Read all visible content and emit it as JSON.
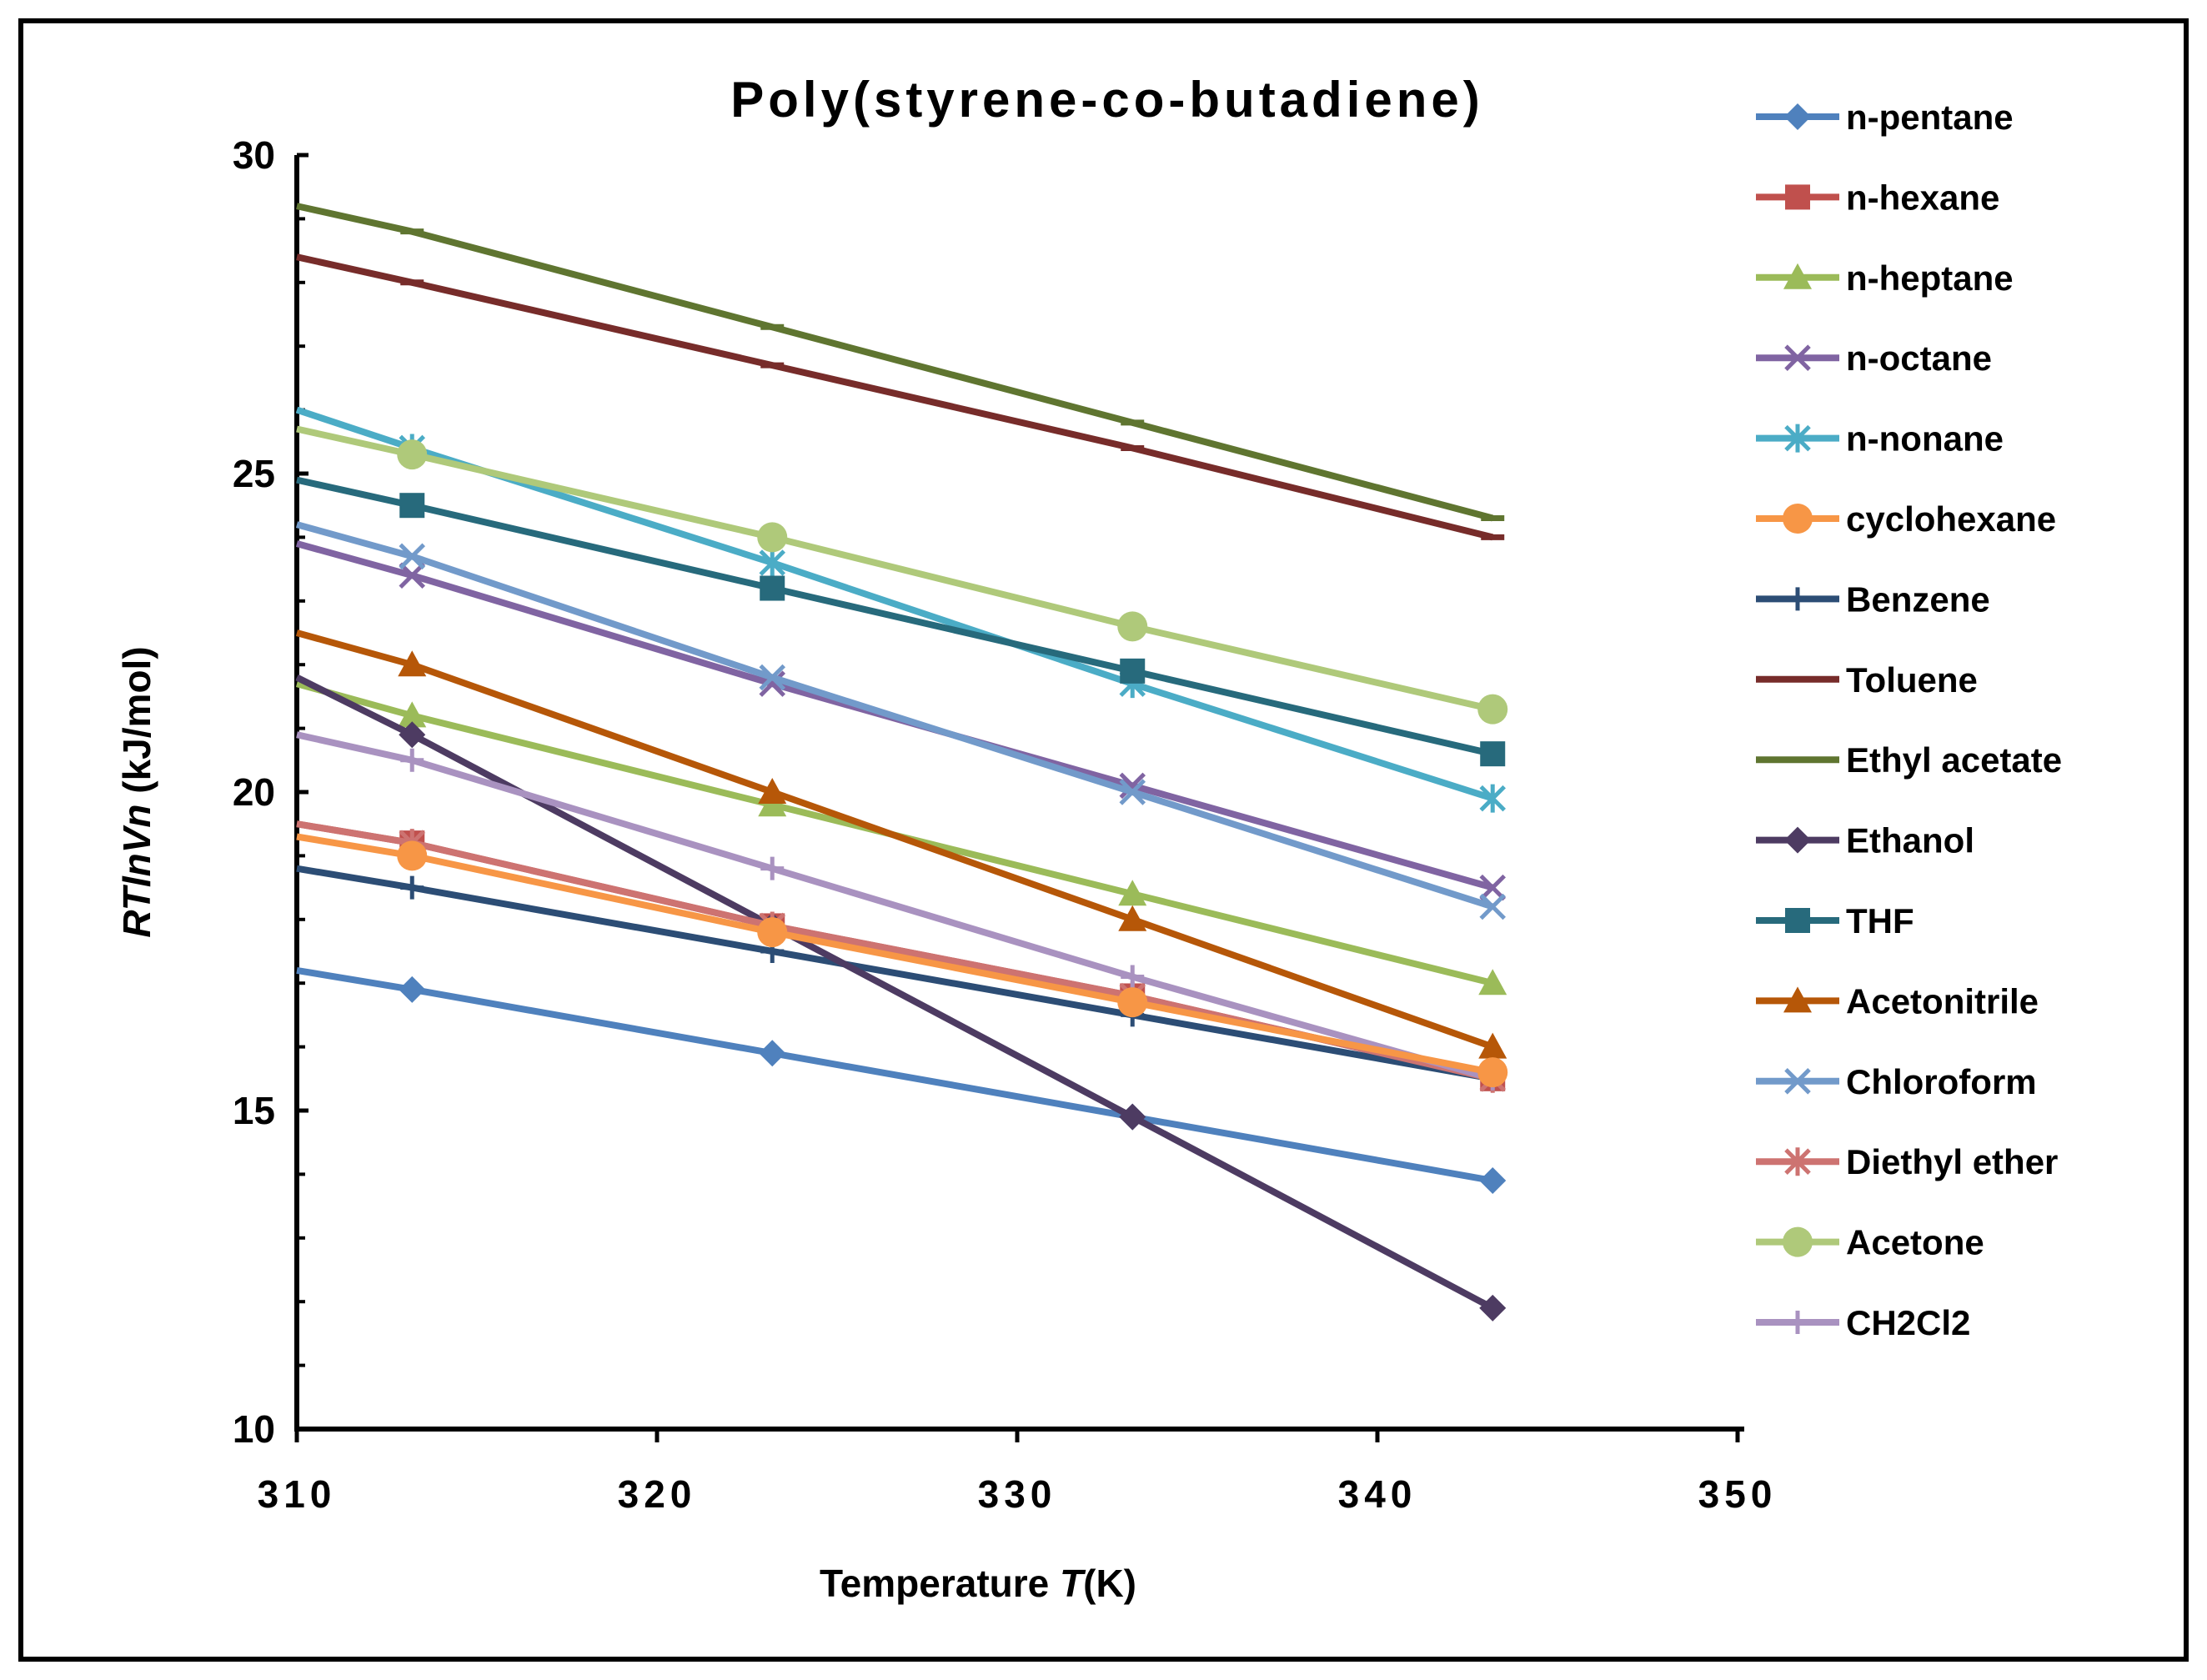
{
  "chart_data": {
    "type": "line",
    "title": "Poly(styrene-co-butadiene)",
    "xlabel_main": "Temperature ",
    "xlabel_var": "T",
    "xlabel_unit": "(K)",
    "ylabel_var": "RTlnVn",
    "ylabel_unit": " (kJ/mol)",
    "xlim": [
      310,
      350
    ],
    "ylim": [
      10,
      30
    ],
    "xticks": [
      "310",
      "320",
      "330",
      "340",
      "350"
    ],
    "yticks": [
      "10",
      "15",
      "20",
      "25",
      "30"
    ],
    "x_points": [
      313.2,
      323.2,
      333.2,
      343.2
    ],
    "legend_position": "right",
    "series": [
      {
        "name": "n-pentane",
        "color": "#4f81bd",
        "marker": "diamond",
        "start": 17.2,
        "values": [
          16.9,
          15.9,
          14.9,
          13.9
        ]
      },
      {
        "name": "n-hexane",
        "color": "#c0504d",
        "marker": "square",
        "start": 19.5,
        "values": [
          19.2,
          17.9,
          16.8,
          15.5
        ]
      },
      {
        "name": "n-heptane",
        "color": "#9bbb59",
        "marker": "triangle",
        "start": 21.7,
        "values": [
          21.2,
          19.8,
          18.4,
          17.0
        ]
      },
      {
        "name": "n-octane",
        "color": "#8064a2",
        "marker": "x",
        "start": 23.9,
        "values": [
          23.4,
          21.7,
          20.1,
          18.5
        ]
      },
      {
        "name": "n-nonane",
        "color": "#4bacc6",
        "marker": "star",
        "start": 26.0,
        "values": [
          25.4,
          23.6,
          21.7,
          19.9
        ]
      },
      {
        "name": "cyclohexane",
        "color": "#f79646",
        "marker": "circle",
        "start": 19.3,
        "values": [
          19.0,
          17.8,
          16.7,
          15.6
        ]
      },
      {
        "name": "Benzene",
        "color": "#2c4d75",
        "marker": "plus",
        "start": 18.8,
        "values": [
          18.5,
          17.5,
          16.5,
          15.5
        ]
      },
      {
        "name": "Toluene",
        "color": "#772c2a",
        "marker": "dash",
        "start": 28.4,
        "values": [
          28.0,
          26.7,
          25.4,
          24.0
        ]
      },
      {
        "name": "Ethyl acetate",
        "color": "#5f7530",
        "marker": "dash",
        "start": 29.2,
        "values": [
          28.8,
          27.3,
          25.8,
          24.3
        ]
      },
      {
        "name": "Ethanol",
        "color": "#4d3b62",
        "marker": "diamond",
        "start": 21.8,
        "values": [
          20.9,
          17.9,
          14.9,
          11.9
        ]
      },
      {
        "name": "THF",
        "color": "#276a7c",
        "marker": "square",
        "start": 24.9,
        "values": [
          24.5,
          23.2,
          21.9,
          20.6
        ]
      },
      {
        "name": "Acetonitrile",
        "color": "#b65708",
        "marker": "triangle",
        "start": 22.5,
        "values": [
          22.0,
          20.0,
          18.0,
          16.0
        ]
      },
      {
        "name": "Chloroform",
        "color": "#729aca",
        "marker": "x",
        "start": 24.2,
        "values": [
          23.7,
          21.8,
          20.0,
          18.2
        ]
      },
      {
        "name": "Diethyl ether",
        "color": "#cd7371",
        "marker": "star",
        "start": 19.5,
        "values": [
          19.2,
          17.9,
          16.8,
          15.5
        ]
      },
      {
        "name": "Acetone",
        "color": "#afc97a",
        "marker": "circle",
        "start": 25.7,
        "values": [
          25.3,
          24.0,
          22.6,
          21.3
        ]
      },
      {
        "name": "CH2Cl2",
        "color": "#a992c0",
        "marker": "plus",
        "start": 20.9,
        "values": [
          20.5,
          18.8,
          17.1,
          15.5
        ]
      }
    ],
    "draw_order": [
      "n-pentane",
      "n-hexane",
      "n-heptane",
      "n-octane",
      "n-nonane",
      "Benzene",
      "Toluene",
      "Ethyl acetate",
      "Ethanol",
      "Acetonitrile",
      "Chloroform",
      "Diethyl ether",
      "CH2Cl2",
      "THF",
      "cyclohexane",
      "Acetone"
    ]
  }
}
